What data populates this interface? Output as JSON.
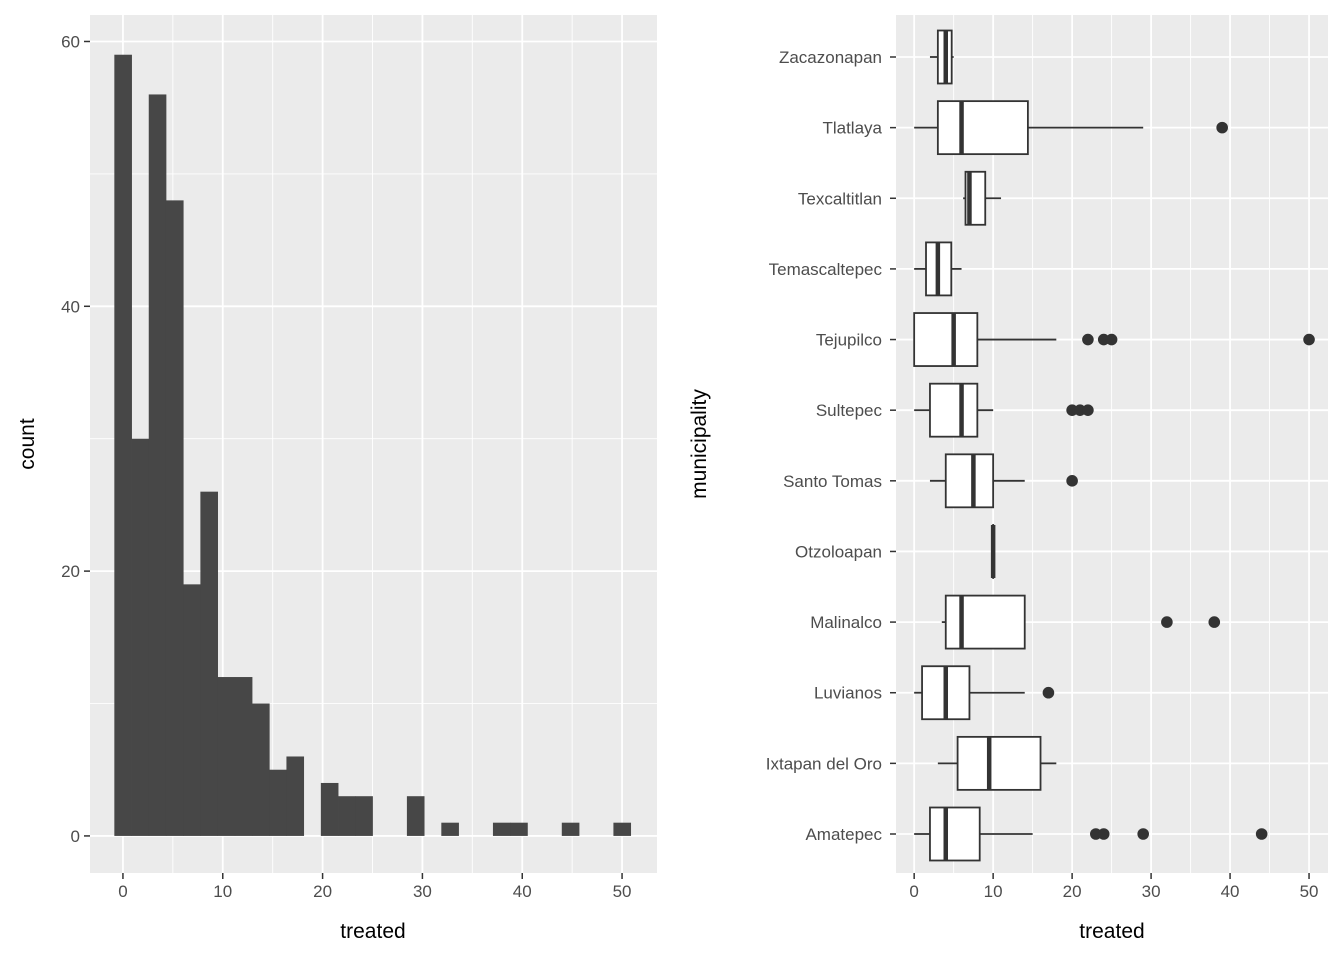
{
  "chart_data": [
    {
      "type": "bar",
      "subtype": "histogram",
      "xlabel": "treated",
      "ylabel": "count",
      "bins": 30,
      "bin_width": 1.724,
      "bin_centers_start": 0,
      "counts": [
        59,
        30,
        56,
        48,
        19,
        26,
        12,
        12,
        10,
        5,
        6,
        0,
        4,
        3,
        3,
        0,
        0,
        3,
        0,
        1,
        0,
        0,
        1,
        1,
        0,
        0,
        1,
        0,
        0,
        1
      ],
      "xlim": [
        -3.3,
        53.5
      ],
      "ylim": [
        -2.8,
        62
      ],
      "xticks": [
        0,
        10,
        20,
        30,
        40,
        50
      ],
      "yticks": [
        0,
        20,
        40,
        60
      ],
      "grid": true,
      "bar_color": "#474747",
      "panel_color": "#ebebeb"
    },
    {
      "type": "boxplot",
      "orientation": "horizontal",
      "xlabel": "treated",
      "ylabel": "municipality",
      "xlim": [
        -2.3,
        52.4
      ],
      "xticks": [
        0,
        10,
        20,
        30,
        40,
        50
      ],
      "grid": true,
      "categories": [
        {
          "name": "Zacazonapan",
          "lower": 2,
          "q1": 3,
          "median": 4,
          "q3": 4.75,
          "upper": 5,
          "outliers": []
        },
        {
          "name": "Tlatlaya",
          "lower": 0,
          "q1": 3,
          "median": 6,
          "q3": 14.4,
          "upper": 29,
          "outliers": [
            39
          ]
        },
        {
          "name": "Texcaltitlan",
          "lower": 6.2,
          "q1": 6.5,
          "median": 7,
          "q3": 9,
          "upper": 11,
          "outliers": []
        },
        {
          "name": "Temascaltepec",
          "lower": 0,
          "q1": 1.5,
          "median": 3,
          "q3": 4.7,
          "upper": 6,
          "outliers": []
        },
        {
          "name": "Tejupilco",
          "lower": 0,
          "q1": 0,
          "median": 5,
          "q3": 8,
          "upper": 18,
          "outliers": [
            22,
            24,
            25,
            50
          ]
        },
        {
          "name": "Sultepec",
          "lower": 0,
          "q1": 2,
          "median": 6,
          "q3": 8,
          "upper": 10,
          "outliers": [
            20,
            21,
            22
          ]
        },
        {
          "name": "Santo Tomas",
          "lower": 2,
          "q1": 4,
          "median": 7.5,
          "q3": 10,
          "upper": 14,
          "outliers": [
            20
          ]
        },
        {
          "name": "Otzoloapan",
          "lower": 10,
          "q1": 10,
          "median": 10,
          "q3": 10,
          "upper": 10,
          "outliers": []
        },
        {
          "name": "Malinalco",
          "lower": 3.5,
          "q1": 4,
          "median": 6,
          "q3": 14,
          "upper": 14,
          "outliers": [
            32,
            38
          ]
        },
        {
          "name": "Luvianos",
          "lower": 0,
          "q1": 1,
          "median": 4,
          "q3": 7,
          "upper": 14,
          "outliers": [
            17
          ]
        },
        {
          "name": "Ixtapan del Oro",
          "lower": 3,
          "q1": 5.5,
          "median": 9.5,
          "q3": 16,
          "upper": 18,
          "outliers": []
        },
        {
          "name": "Amatepec",
          "lower": 0,
          "q1": 2,
          "median": 4,
          "q3": 8.3,
          "upper": 15,
          "outliers": [
            23,
            24,
            29,
            44
          ]
        }
      ],
      "box_color": "#333333",
      "panel_color": "#ebebeb"
    }
  ]
}
